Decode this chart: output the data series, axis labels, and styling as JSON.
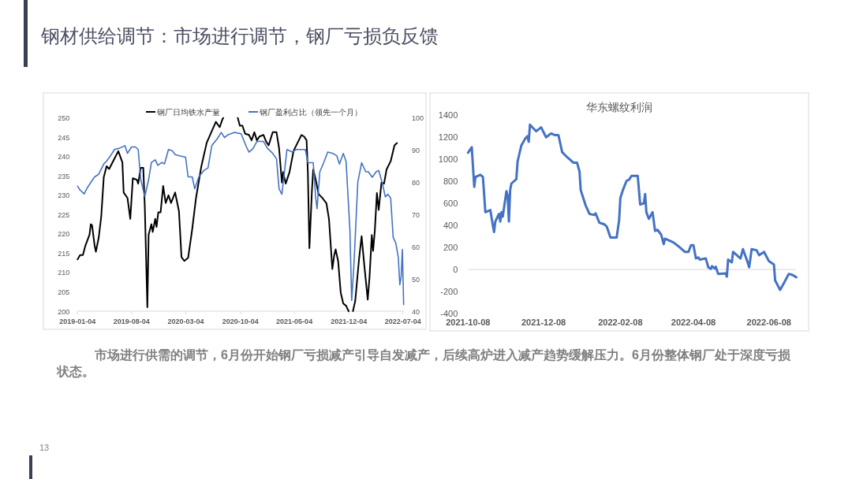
{
  "chart_data": [
    {
      "type": "other",
      "title": "钢材供给调节：市场进行调节，钢厂亏损负反馈",
      "annotations": [
        "市场进行供需的调节，6月份开始钢厂亏损减产引导自发减产，后续高炉进入减产趋势缓解压力。6月份整体钢厂处于深度亏损状态。",
        "13"
      ]
    },
    {
      "type": "line",
      "legend": "top",
      "xlim": [
        "2019-01-04",
        "2022-07-08"
      ],
      "xticks": [
        "2019-01-04",
        "2019-08-04",
        "2020-03-04",
        "2020-10-04",
        "2021-05-04",
        "2021-12-04",
        "2022-07-04"
      ],
      "ylim": [
        200,
        250
      ],
      "yticks": [
        200,
        205,
        210,
        215,
        220,
        225,
        230,
        235,
        240,
        245,
        250
      ],
      "y2lim": [
        40,
        100
      ],
      "y2ticks": [
        40,
        50,
        60,
        70,
        80,
        90,
        100
      ],
      "series": [
        {
          "name": "钢厂日均铁水产量",
          "color": "#000000",
          "axis": "y",
          "x": [
            "2019-01-04",
            "2019-01-14",
            "2019-01-25",
            "2019-02-04",
            "2019-02-20",
            "2019-02-25",
            "2019-03-02",
            "2019-03-12",
            "2019-03-17",
            "2019-03-28",
            "2019-04-07",
            "2019-04-17",
            "2019-04-28",
            "2019-05-08",
            "2019-05-29",
            "2019-06-13",
            "2019-06-29",
            "2019-07-04",
            "2019-07-19",
            "2019-07-30",
            "2019-08-09",
            "2019-08-25",
            "2019-08-30",
            "2019-09-09",
            "2019-09-19",
            "2019-09-25",
            "2019-10-05",
            "2019-10-10",
            "2019-10-21",
            "2019-10-26",
            "2019-11-05",
            "2019-11-10",
            "2019-11-17",
            "2019-11-26",
            "2019-12-06",
            "2019-12-16",
            "2019-12-27",
            "2020-01-06",
            "2020-01-22",
            "2020-02-06",
            "2020-02-16",
            "2020-02-27",
            "2020-03-13",
            "2020-03-29",
            "2020-04-13",
            "2020-05-04",
            "2020-05-25",
            "2020-06-14",
            "2020-06-30",
            "2020-07-15",
            "2020-07-26",
            "2020-07-29",
            "2020-09-24",
            "2020-10-02",
            "2020-10-12",
            "2020-10-23",
            "2020-11-07",
            "2020-11-17",
            "2020-11-28",
            "2020-12-08",
            "2020-12-18",
            "2021-01-03",
            "2021-01-13",
            "2021-01-23",
            "2021-02-08",
            "2021-02-23",
            "2021-03-05",
            "2021-03-16",
            "2021-03-21",
            "2021-03-31",
            "2021-04-15",
            "2021-05-01",
            "2021-05-16",
            "2021-06-01",
            "2021-06-11",
            "2021-06-21",
            "2021-06-26",
            "2021-07-02",
            "2021-07-12",
            "2021-07-17",
            "2021-07-27",
            "2021-08-07",
            "2021-08-22",
            "2021-09-07",
            "2021-09-17",
            "2021-09-30",
            "2021-10-07",
            "2021-10-13",
            "2021-10-23",
            "2021-11-02",
            "2021-11-12",
            "2021-11-23",
            "2021-12-03",
            "2021-12-20",
            "2021-12-29",
            "2022-01-13",
            "2022-01-23",
            "2022-02-03",
            "2022-02-16",
            "2022-02-23",
            "2022-03-04",
            "2022-03-09",
            "2022-03-16",
            "2022-03-24",
            "2022-03-31",
            "2022-04-11",
            "2022-04-21",
            "2022-05-01",
            "2022-05-17",
            "2022-06-01",
            "2022-06-11"
          ],
          "values": [
            213.4,
            214.5,
            214.5,
            217,
            219.8,
            222.5,
            222.2,
            217,
            215.4,
            219,
            224.5,
            234.7,
            237.5,
            236.8,
            239.5,
            241.4,
            238.5,
            230.7,
            229.3,
            223.9,
            234.4,
            234,
            233,
            237.1,
            237.1,
            227,
            201,
            219.8,
            222.5,
            220.5,
            223.9,
            221.8,
            225.6,
            225.6,
            232.4,
            228,
            230,
            228,
            230.7,
            225.9,
            214,
            213,
            213.8,
            221.2,
            229.3,
            237.5,
            243.6,
            246.6,
            249,
            247.6,
            249.7,
            250,
            250,
            248,
            248,
            245.9,
            245.6,
            244.2,
            246.3,
            244.2,
            245.2,
            245.6,
            243.9,
            242.9,
            246.3,
            246.3,
            242.2,
            233.3,
            236,
            233,
            236,
            241.5,
            243.5,
            245.6,
            245.2,
            244.2,
            236,
            216.3,
            231.3,
            236.7,
            234,
            230.3,
            229.3,
            227.9,
            223.8,
            210.9,
            214.3,
            216,
            212.9,
            204.8,
            202,
            201.4,
            200,
            200,
            202.7,
            213.6,
            219.4,
            211.6,
            203,
            208.8,
            219.7,
            215.6,
            221,
            230.6,
            226.2,
            233.3,
            233,
            236.7,
            238.8,
            242.9,
            243.5
          ]
        },
        {
          "name": "钢厂盈利占比（领先一个月）",
          "color": "#4472c4",
          "axis": "y2",
          "x": [
            "2019-01-04",
            "2019-01-14",
            "2019-01-30",
            "2019-02-09",
            "2019-02-25",
            "2019-03-12",
            "2019-03-28",
            "2019-04-07",
            "2019-04-17",
            "2019-04-28",
            "2019-05-13",
            "2019-05-29",
            "2019-06-18",
            "2019-07-09",
            "2019-07-19",
            "2019-08-04",
            "2019-08-19",
            "2019-08-30",
            "2019-09-09",
            "2019-09-25",
            "2019-10-10",
            "2019-10-21",
            "2019-11-05",
            "2019-11-15",
            "2019-12-01",
            "2019-12-11",
            "2019-12-27",
            "2020-01-11",
            "2020-01-22",
            "2020-02-11",
            "2020-03-03",
            "2020-03-13",
            "2020-03-29",
            "2020-04-08",
            "2020-04-24",
            "2020-05-14",
            "2020-05-30",
            "2020-06-14",
            "2020-07-05",
            "2020-07-21",
            "2020-08-03",
            "2020-08-15",
            "2020-09-11",
            "2020-10-07",
            "2020-10-28",
            "2020-11-07",
            "2020-11-22",
            "2020-12-08",
            "2021-01-03",
            "2021-01-18",
            "2021-02-08",
            "2021-02-23",
            "2021-03-05",
            "2021-03-16",
            "2021-03-26",
            "2021-04-05",
            "2021-04-26",
            "2021-05-11",
            "2021-06-16",
            "2021-06-26",
            "2021-07-17",
            "2021-07-27",
            "2021-08-01",
            "2021-08-12",
            "2021-08-27",
            "2021-09-12",
            "2021-10-02",
            "2021-10-18",
            "2021-10-28",
            "2021-11-12",
            "2021-11-23",
            "2021-12-08",
            "2021-12-15",
            "2021-12-24",
            "2022-01-08",
            "2022-01-23",
            "2022-02-08",
            "2022-02-18",
            "2022-03-06",
            "2022-03-21",
            "2022-03-31",
            "2022-04-16",
            "2022-04-26",
            "2022-05-06",
            "2022-05-17",
            "2022-05-27",
            "2022-06-06",
            "2022-06-16",
            "2022-06-22",
            "2022-06-27",
            "2022-07-02",
            "2022-07-07"
          ],
          "values": [
            78.8,
            77.6,
            76.4,
            78,
            80,
            81.7,
            82.5,
            84.1,
            85.7,
            86.6,
            88.2,
            90.2,
            90.6,
            91.4,
            89,
            91,
            91,
            90.2,
            80.9,
            75.6,
            80.9,
            86.2,
            87,
            85.3,
            86.2,
            85.7,
            90.2,
            89.8,
            88.6,
            88.2,
            87.8,
            81.7,
            81.7,
            78,
            81.7,
            83.7,
            84.5,
            91.4,
            93.5,
            95.5,
            93.9,
            94.7,
            95.5,
            95.1,
            91,
            89.4,
            90.4,
            92.7,
            92.7,
            90.6,
            89,
            87.3,
            78,
            76.3,
            83.3,
            90.2,
            89.4,
            90.2,
            90.2,
            86.1,
            86.1,
            75.1,
            71.8,
            83.3,
            86.1,
            89.4,
            89,
            88.2,
            85.7,
            89,
            86.5,
            65.3,
            43.3,
            54.7,
            80,
            86.1,
            83.3,
            83.3,
            81.6,
            83.3,
            83.7,
            79.2,
            75.5,
            76.3,
            75.1,
            62.9,
            61.2,
            56.7,
            48.2,
            50.6,
            59.2,
            42
          ]
        }
      ]
    },
    {
      "type": "line",
      "title": "华东螺纹利润",
      "xlim": [
        "2021-10-08",
        "2022-06-30"
      ],
      "xticks": [
        "2021-10-08",
        "2021-12-08",
        "2022-02-08",
        "2022-04-08",
        "2022-06-08"
      ],
      "ylim": [
        -400,
        1400
      ],
      "yticks": [
        -400,
        -200,
        0,
        200,
        400,
        600,
        800,
        1000,
        1200,
        1400
      ],
      "series": [
        {
          "color": "#4472c4",
          "x": [
            "2021-10-08",
            "2021-10-11",
            "2021-10-13",
            "2021-10-14",
            "2021-10-18",
            "2021-10-20",
            "2021-10-22",
            "2021-10-26",
            "2021-10-28",
            "2021-10-29",
            "2021-10-30",
            "2021-11-02",
            "2021-11-03",
            "2021-11-04",
            "2021-11-05",
            "2021-11-08",
            "2021-11-09",
            "2021-11-10",
            "2021-11-11",
            "2021-11-12",
            "2021-11-16",
            "2021-11-17",
            "2021-11-20",
            "2021-11-23",
            "2021-11-25",
            "2021-11-26",
            "2021-11-27",
            "2021-11-29",
            "2021-12-02",
            "2021-12-06",
            "2021-12-10",
            "2021-12-14",
            "2021-12-17",
            "2021-12-20",
            "2021-12-23",
            "2021-12-27",
            "2022-01-01",
            "2022-01-04",
            "2022-01-06",
            "2022-01-07",
            "2022-01-11",
            "2022-01-14",
            "2022-01-18",
            "2022-01-19",
            "2022-01-22",
            "2022-01-26",
            "2022-01-28",
            "2022-01-31",
            "2022-02-05",
            "2022-02-07",
            "2022-02-08",
            "2022-02-10",
            "2022-02-13",
            "2022-02-15",
            "2022-02-17",
            "2022-02-22",
            "2022-02-24",
            "2022-02-27",
            "2022-02-28",
            "2022-03-01",
            "2022-03-03",
            "2022-03-06",
            "2022-03-08",
            "2022-03-10",
            "2022-03-13",
            "2022-03-15",
            "2022-03-16",
            "2022-03-21",
            "2022-03-23",
            "2022-03-27",
            "2022-04-01",
            "2022-04-04",
            "2022-04-06",
            "2022-04-08",
            "2022-04-10",
            "2022-04-12",
            "2022-04-13",
            "2022-04-18",
            "2022-04-20",
            "2022-04-22",
            "2022-04-23",
            "2022-04-25",
            "2022-04-26",
            "2022-04-28",
            "2022-05-04",
            "2022-05-05",
            "2022-05-06",
            "2022-05-09",
            "2022-05-10",
            "2022-05-16",
            "2022-05-18",
            "2022-05-21",
            "2022-05-23",
            "2022-05-25",
            "2022-05-29",
            "2022-05-31",
            "2022-06-04",
            "2022-06-08",
            "2022-06-12",
            "2022-06-13",
            "2022-06-17",
            "2022-06-20",
            "2022-06-24",
            "2022-06-27",
            "2022-06-30"
          ],
          "values": [
            1060,
            1110,
            750,
            840,
            860,
            840,
            520,
            540,
            400,
            340,
            435,
            505,
            435,
            520,
            480,
            710,
            670,
            435,
            720,
            780,
            820,
            980,
            1125,
            1185,
            1210,
            1160,
            1315,
            1290,
            1255,
            1290,
            1200,
            1235,
            1220,
            1220,
            1065,
            1020,
            970,
            970,
            890,
            720,
            580,
            505,
            495,
            510,
            425,
            410,
            390,
            290,
            290,
            450,
            650,
            720,
            805,
            815,
            850,
            850,
            590,
            600,
            685,
            520,
            460,
            520,
            350,
            360,
            315,
            230,
            280,
            255,
            245,
            210,
            160,
            160,
            220,
            220,
            100,
            110,
            90,
            100,
            20,
            5,
            30,
            10,
            25,
            -40,
            -35,
            -65,
            90,
            65,
            160,
            100,
            185,
            90,
            20,
            185,
            175,
            130,
            160,
            75,
            45,
            -100,
            -185,
            -125,
            -40,
            -50,
            -70
          ]
        }
      ]
    }
  ]
}
